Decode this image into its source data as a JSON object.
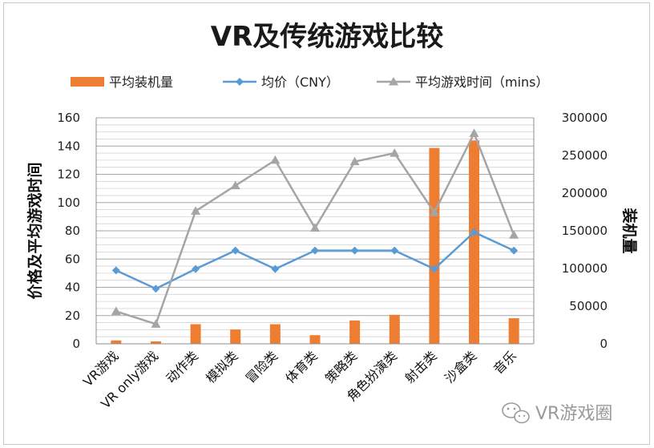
{
  "chart_data": {
    "type": "bar",
    "title": "VR及传统游戏比较",
    "categories": [
      "VR游戏",
      "VR only游戏",
      "动作类",
      "模拟类",
      "冒险类",
      "体育类",
      "策略类",
      "角色扮演类",
      "射击类",
      "沙盒类",
      "音乐"
    ],
    "series": [
      {
        "name": "平均装机量",
        "type": "bar",
        "axis": "right",
        "color": "#ED7D31",
        "values": [
          4500,
          3200,
          26000,
          19000,
          26000,
          11500,
          31000,
          38500,
          260000,
          270000,
          34000
        ]
      },
      {
        "name": "均价（CNY）",
        "type": "line",
        "axis": "left",
        "color": "#5B9BD5",
        "marker": "diamond",
        "values": [
          52,
          39,
          53,
          66,
          53,
          66,
          66,
          66,
          53,
          79,
          66
        ]
      },
      {
        "name": "平均游戏时间（mins）",
        "type": "line",
        "axis": "left",
        "color": "#A5A5A5",
        "marker": "triangle",
        "values": [
          23,
          14,
          94,
          112,
          130,
          82,
          129,
          135,
          93,
          149,
          77
        ]
      }
    ],
    "ylabel_left": "价格及平均游戏时间",
    "ylabel_right": "装机量",
    "ylim_left": [
      0,
      160
    ],
    "yticks_left": [
      "0",
      "20",
      "40",
      "60",
      "80",
      "100",
      "120",
      "140",
      "160"
    ],
    "ylim_right": [
      0,
      300000
    ],
    "yticks_right": [
      "0",
      "50000",
      "100000",
      "150000",
      "200000",
      "250000",
      "300000"
    ],
    "grid": true,
    "legend_position": "top"
  },
  "watermark": "VR游戏圈"
}
